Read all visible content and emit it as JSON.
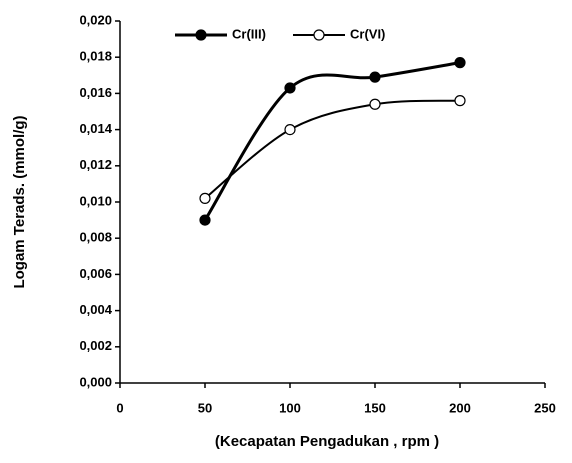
{
  "chart_data": {
    "type": "line",
    "x_label": "(Kecapatan Pengadukan , rpm  )",
    "y_label": "Logam Terads. (mmol/g)",
    "x": [
      50,
      100,
      150,
      200
    ],
    "series": [
      {
        "name": "Cr(III)",
        "color": "#000000",
        "marker": "filled",
        "values": [
          0.009,
          0.0163,
          0.0169,
          0.0177
        ]
      },
      {
        "name": "Cr(VI)",
        "color": "#000000",
        "marker": "open",
        "values": [
          0.0102,
          0.014,
          0.0154,
          0.0156
        ]
      }
    ],
    "xlim": [
      0,
      250
    ],
    "xticks": [
      0,
      50,
      100,
      150,
      200,
      250
    ],
    "ylim": [
      0,
      0.02
    ],
    "yticks": [
      {
        "value": 0,
        "label": "0,000"
      },
      {
        "value": 0.002,
        "label": "0,002"
      },
      {
        "value": 0.004,
        "label": "0,004"
      },
      {
        "value": 0.006,
        "label": "0,006"
      },
      {
        "value": 0.008,
        "label": "0,008"
      },
      {
        "value": 0.01,
        "label": "0,010"
      },
      {
        "value": 0.012,
        "label": "0,012"
      },
      {
        "value": 0.014,
        "label": "0,014"
      },
      {
        "value": 0.016,
        "label": "0,016"
      },
      {
        "value": 0.018,
        "label": "0,018"
      },
      {
        "value": 0.02,
        "label": "0,020"
      }
    ],
    "smooth": true,
    "legend": "top"
  }
}
